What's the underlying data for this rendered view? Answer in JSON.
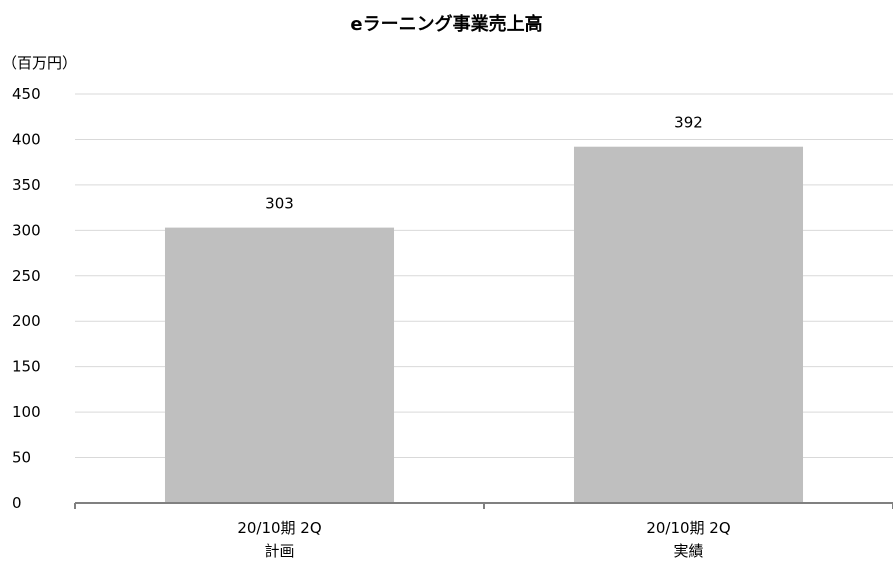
{
  "chart_data": {
    "type": "bar",
    "title": "eラーニング事業売上高",
    "ylabel": "（百万円）",
    "xlabel": "",
    "categories": [
      [
        "20/10期 2Q",
        "計画"
      ],
      [
        "20/10期 2Q",
        "実績"
      ]
    ],
    "values": [
      303,
      392
    ],
    "data_labels": [
      "303",
      "392"
    ],
    "ylim": [
      0,
      450
    ],
    "yticks": [
      0,
      50,
      100,
      150,
      200,
      250,
      300,
      350,
      400,
      450
    ],
    "grid": true,
    "legend": "none",
    "colors": {
      "bar": "#bfbfbf",
      "grid": "#d9d9d9",
      "axis": "#808080"
    }
  }
}
